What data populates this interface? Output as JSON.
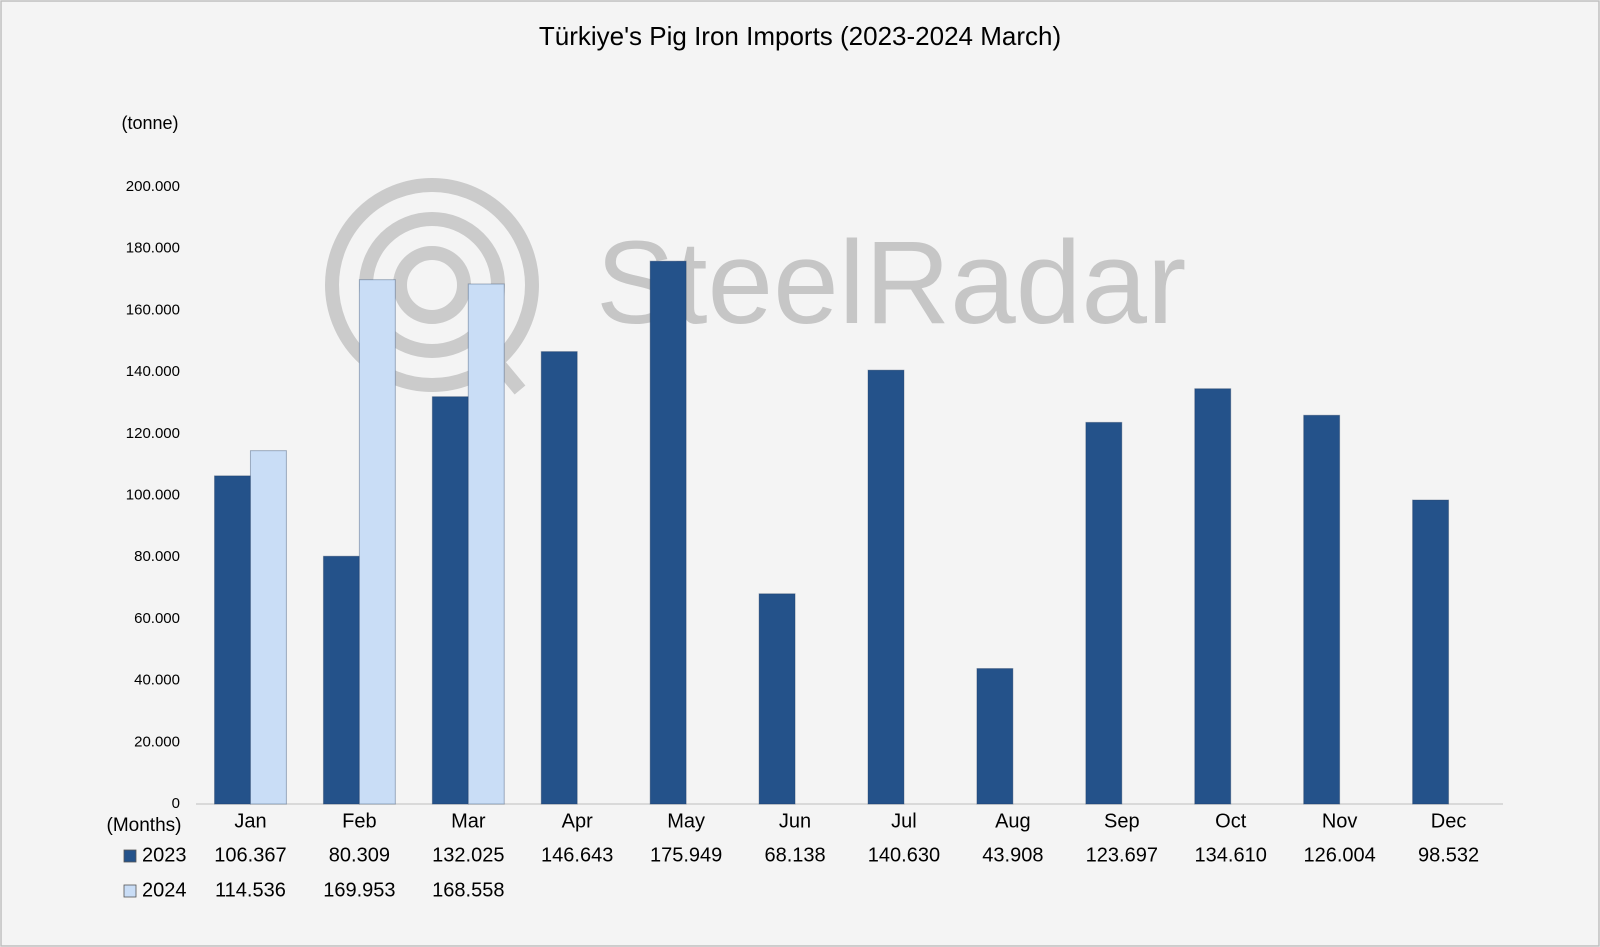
{
  "chart_data": {
    "type": "bar",
    "title": "Türkiye's Pig Iron Imports (2023-2024 March)",
    "y_label": "(tonne)",
    "x_label": "(Months)",
    "watermark": "SteelRadar",
    "categories": [
      "Jan",
      "Feb",
      "Mar",
      "Apr",
      "May",
      "Jun",
      "Jul",
      "Aug",
      "Sep",
      "Oct",
      "Nov",
      "Dec"
    ],
    "series": [
      {
        "name": "2023",
        "color": "#24528a",
        "values": [
          106367,
          80309,
          132025,
          146643,
          175949,
          68138,
          140630,
          43908,
          123697,
          134610,
          126004,
          98532
        ],
        "value_labels": [
          "106.367",
          "80.309",
          "132.025",
          "146.643",
          "175.949",
          "68.138",
          "140.630",
          "43.908",
          "123.697",
          "134.610",
          "126.004",
          "98.532"
        ]
      },
      {
        "name": "2024",
        "color": "#c9ddf6",
        "values": [
          114536,
          169953,
          168558,
          null,
          null,
          null,
          null,
          null,
          null,
          null,
          null,
          null
        ],
        "value_labels": [
          "114.536",
          "169.953",
          "168.558",
          null,
          null,
          null,
          null,
          null,
          null,
          null,
          null,
          null
        ]
      }
    ],
    "ylim": [
      0,
      200000
    ],
    "yticks": [
      0,
      {
        "value": 20000,
        "label": "20.000"
      },
      {
        "value": 40000,
        "label": "40.000"
      },
      {
        "value": 60000,
        "label": "60.000"
      },
      {
        "value": 80000,
        "label": "80.000"
      },
      {
        "value": 100000,
        "label": "100.000"
      },
      {
        "value": 120000,
        "label": "120.000"
      },
      {
        "value": 140000,
        "label": "140.000"
      },
      {
        "value": 160000,
        "label": "160.000"
      },
      {
        "value": 180000,
        "label": "180.000"
      },
      {
        "value": 200000,
        "label": "200.000"
      }
    ],
    "grid": false
  }
}
